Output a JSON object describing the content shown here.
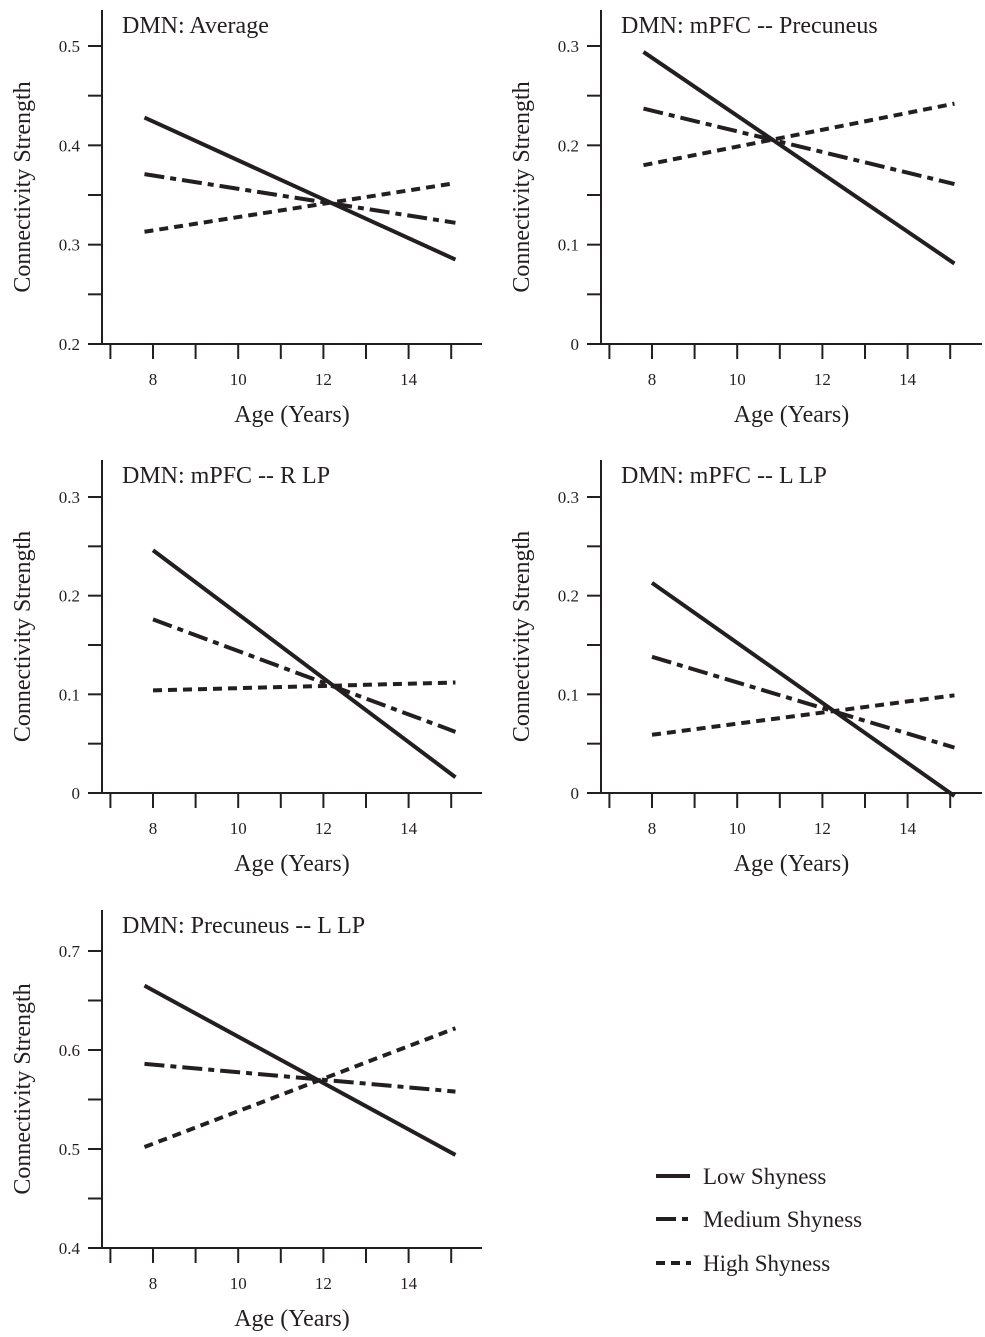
{
  "chart_data": [
    {
      "type": "line",
      "title": "DMN: Average",
      "xlabel": "Age (Years)",
      "ylabel": "Connectivity Strength",
      "xlim": [
        6.7,
        15.5
      ],
      "ylim": [
        0.2,
        0.5
      ],
      "xticks": [
        8,
        10,
        12,
        14
      ],
      "yticks": [
        0.2,
        0.3,
        0.4,
        0.5
      ],
      "ytick_labels": [
        "0.2",
        "0.3",
        "0.4",
        "0.5"
      ],
      "x": [
        7.8,
        15.1
      ],
      "series": [
        {
          "name": "Low Shyness",
          "values": [
            0.428,
            0.285
          ]
        },
        {
          "name": "Medium Shyness",
          "values": [
            0.371,
            0.322
          ]
        },
        {
          "name": "High Shyness",
          "values": [
            0.313,
            0.362
          ]
        }
      ]
    },
    {
      "type": "line",
      "title": "DMN: mPFC -- Precuneus",
      "xlabel": "Age (Years)",
      "ylabel": "Connectivity Strength",
      "xlim": [
        6.7,
        15.5
      ],
      "ylim": [
        0,
        0.3
      ],
      "xticks": [
        8,
        10,
        12,
        14
      ],
      "yticks": [
        0,
        0.1,
        0.2,
        0.3
      ],
      "ytick_labels": [
        "0",
        "0.1",
        "0.2",
        "0.3"
      ],
      "x": [
        7.8,
        15.1
      ],
      "series": [
        {
          "name": "Low Shyness",
          "values": [
            0.294,
            0.081
          ]
        },
        {
          "name": "Medium Shyness",
          "values": [
            0.237,
            0.161
          ]
        },
        {
          "name": "High Shyness",
          "values": [
            0.18,
            0.242
          ]
        }
      ]
    },
    {
      "type": "line",
      "title": "DMN: mPFC -- R LP",
      "xlabel": "Age (Years)",
      "ylabel": "Connectivity Strength",
      "xlim": [
        6.7,
        15.5
      ],
      "ylim": [
        0,
        0.3
      ],
      "xticks": [
        8,
        10,
        12,
        14
      ],
      "yticks": [
        0,
        0.1,
        0.2,
        0.3
      ],
      "ytick_labels": [
        "0",
        "0.1",
        "0.2",
        "0.3"
      ],
      "x": [
        8.0,
        15.1
      ],
      "series": [
        {
          "name": "Low Shyness",
          "values": [
            0.246,
            0.016
          ]
        },
        {
          "name": "Medium Shyness",
          "values": [
            0.176,
            0.062
          ]
        },
        {
          "name": "High Shyness",
          "values": [
            0.104,
            0.112
          ]
        }
      ]
    },
    {
      "type": "line",
      "title": "DMN: mPFC -- L LP",
      "xlabel": "Age (Years)",
      "ylabel": "Connectivity Strength",
      "xlim": [
        6.7,
        15.5
      ],
      "ylim": [
        0,
        0.3
      ],
      "xticks": [
        8,
        10,
        12,
        14
      ],
      "yticks": [
        0,
        0.1,
        0.2,
        0.3
      ],
      "ytick_labels": [
        "0",
        "0.1",
        "0.2",
        "0.3"
      ],
      "x": [
        8.0,
        15.1
      ],
      "series": [
        {
          "name": "Low Shyness",
          "values": [
            0.213,
            -0.003
          ]
        },
        {
          "name": "Medium Shyness",
          "values": [
            0.138,
            0.046
          ]
        },
        {
          "name": "High Shyness",
          "values": [
            0.059,
            0.099
          ]
        }
      ]
    },
    {
      "type": "line",
      "title": "DMN: Precuneus -- L LP",
      "xlabel": "Age (Years)",
      "ylabel": "Connectivity Strength",
      "xlim": [
        6.7,
        15.5
      ],
      "ylim": [
        0.4,
        0.7
      ],
      "xticks": [
        8,
        10,
        12,
        14
      ],
      "yticks": [
        0.4,
        0.5,
        0.6,
        0.7
      ],
      "ytick_labels": [
        "0.4",
        "0.5",
        "0.6",
        "0.7"
      ],
      "x": [
        7.8,
        15.1
      ],
      "series": [
        {
          "name": "Low Shyness",
          "values": [
            0.665,
            0.494
          ]
        },
        {
          "name": "Medium Shyness",
          "values": [
            0.586,
            0.558
          ]
        },
        {
          "name": "High Shyness",
          "values": [
            0.502,
            0.622
          ]
        }
      ]
    }
  ],
  "legend": {
    "items": [
      {
        "label": "Low Shyness",
        "style": "solid"
      },
      {
        "label": "Medium Shyness",
        "style": "dash-dot"
      },
      {
        "label": "High Shyness",
        "style": "dashed"
      }
    ]
  },
  "colors": {
    "ink": "#231f20",
    "background": "#ffffff"
  }
}
